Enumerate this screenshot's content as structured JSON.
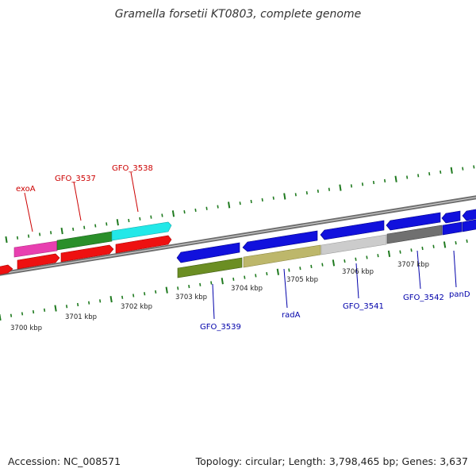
{
  "title": "Gramella forsetii KT0803, complete genome",
  "footer": {
    "accession": "Accession: NC_008571",
    "stats": "Topology: circular; Length: 3,798,465 bp; Genes: 3,637"
  },
  "colors": {
    "tick": "#1f7a1f",
    "backbone": "#888888",
    "label_red": "#cc0000",
    "label_blue": "#0000aa"
  },
  "kbp_labels": [
    "3700 kbp",
    "3701 kbp",
    "3702 kbp",
    "3703 kbp",
    "3704 kbp",
    "3705 kbp",
    "3706 kbp",
    "3707 kbp"
  ],
  "gene_labels": [
    {
      "id": "exoA",
      "text": "exoA",
      "strand": "upper",
      "color": "red"
    },
    {
      "id": "gfo-3537",
      "text": "GFO_3537",
      "strand": "upper",
      "color": "red"
    },
    {
      "id": "gfo-3538",
      "text": "GFO_3538",
      "strand": "upper",
      "color": "red"
    },
    {
      "id": "gfo-3539",
      "text": "GFO_3539",
      "strand": "lower",
      "color": "blue"
    },
    {
      "id": "rada",
      "text": "radA",
      "strand": "lower",
      "color": "blue"
    },
    {
      "id": "gfo-3541",
      "text": "GFO_3541",
      "strand": "lower",
      "color": "blue"
    },
    {
      "id": "gfo-3542",
      "text": "GFO_3542",
      "strand": "lower",
      "color": "blue"
    },
    {
      "id": "pand",
      "text": "panD",
      "strand": "lower",
      "color": "blue"
    }
  ]
}
